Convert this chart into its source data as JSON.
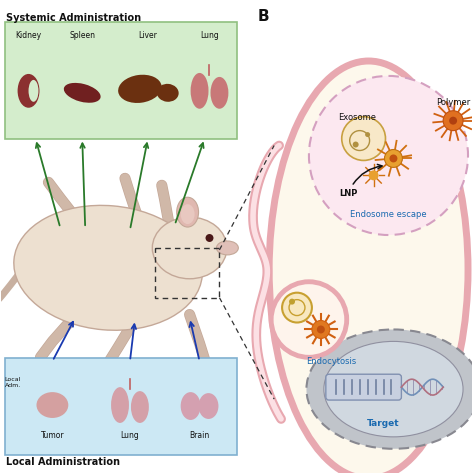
{
  "bg_color": "#ffffff",
  "green_box_color": "#d4edcc",
  "blue_box_color": "#cce8f4",
  "cell_fill": "#fdf8ec",
  "cell_border": "#e8a8b0",
  "nucleus_fill": "#c8ccd0",
  "nucleus_border": "#909090",
  "arrow_green": "#2a7a2a",
  "arrow_blue": "#1a3ab0",
  "text_blue": "#1a6ab0",
  "text_black": "#111111",
  "organ_dark_red": "#7a2828",
  "organ_pink": "#d08888",
  "organ_liver": "#6b3010",
  "endosome_border": "#d4a0c0",
  "particle_orange": "#e08020",
  "particle_gold": "#d4a040",
  "label_B": "B",
  "title_systemic": "Systemic Administration",
  "title_local": "Local Administration",
  "label_kidney": "Kidney",
  "label_spleen": "Spleen",
  "label_liver": "Liver",
  "label_lung": "Lung",
  "label_tumor": "Tumor",
  "label_lung_local": "Lung",
  "label_brain": "Brain",
  "label_exosome": "Exosome",
  "label_polymer": "Polymer",
  "label_lnp": "LNP",
  "label_endosome_escape": "Endosome escape",
  "label_endocytosis": "Endocytosis",
  "label_target": "Target"
}
